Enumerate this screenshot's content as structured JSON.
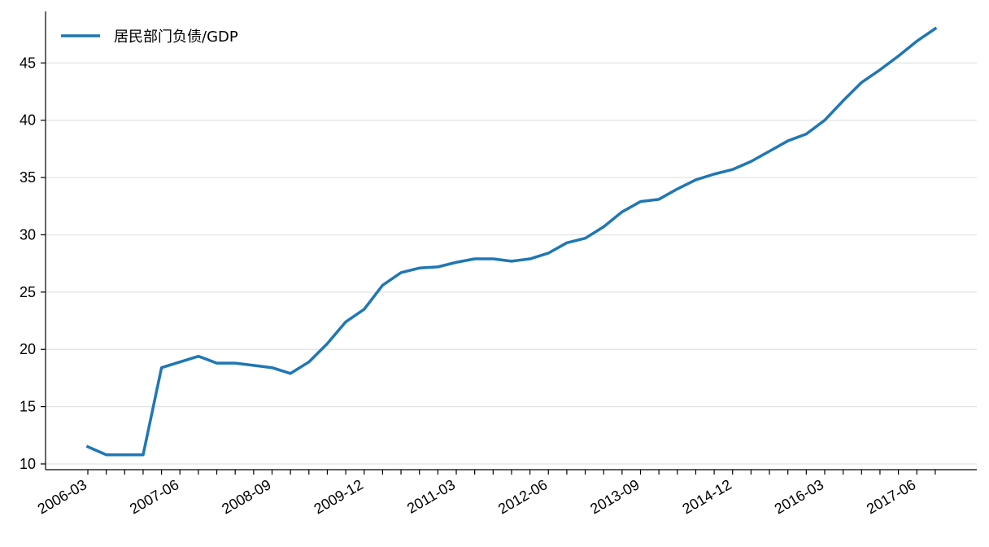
{
  "chart_data": {
    "type": "line",
    "title": "",
    "xlabel": "",
    "ylabel": "",
    "ylim": [
      9.5,
      49.5
    ],
    "yticks": [
      10,
      15,
      20,
      25,
      30,
      35,
      40,
      45
    ],
    "grid": "horizontal",
    "legend_position": "top-left",
    "x": [
      "2006-03",
      "2006-06",
      "2006-09",
      "2006-12",
      "2007-03",
      "2007-06",
      "2007-09",
      "2007-12",
      "2008-03",
      "2008-06",
      "2008-09",
      "2008-12",
      "2009-03",
      "2009-06",
      "2009-09",
      "2009-12",
      "2010-03",
      "2010-06",
      "2010-09",
      "2010-12",
      "2011-03",
      "2011-06",
      "2011-09",
      "2011-12",
      "2012-03",
      "2012-06",
      "2012-09",
      "2012-12",
      "2013-03",
      "2013-06",
      "2013-09",
      "2013-12",
      "2014-03",
      "2014-06",
      "2014-09",
      "2014-12",
      "2015-03",
      "2015-06",
      "2015-09",
      "2015-12",
      "2016-03",
      "2016-06",
      "2016-09",
      "2016-12",
      "2017-03",
      "2017-06",
      "2017-09"
    ],
    "x_tick_labels": [
      "2006-03",
      "2007-06",
      "2008-09",
      "2009-12",
      "2011-03",
      "2012-06",
      "2013-09",
      "2014-12",
      "2016-03",
      "2017-06"
    ],
    "series": [
      {
        "name": "居民部门负债/GDP",
        "color": "#1f77b4",
        "values": [
          11.5,
          10.8,
          10.8,
          10.8,
          18.4,
          18.9,
          19.4,
          18.8,
          18.8,
          18.6,
          18.4,
          17.9,
          18.9,
          20.5,
          22.4,
          23.5,
          25.6,
          26.7,
          27.1,
          27.2,
          27.6,
          27.9,
          27.9,
          27.7,
          27.9,
          28.4,
          29.3,
          29.7,
          30.7,
          32.0,
          32.9,
          33.1,
          34.0,
          34.8,
          35.3,
          35.7,
          36.4,
          37.3,
          38.2,
          38.8,
          40.0,
          41.7,
          43.3,
          44.4,
          45.6,
          46.9,
          48.0
        ]
      }
    ]
  }
}
